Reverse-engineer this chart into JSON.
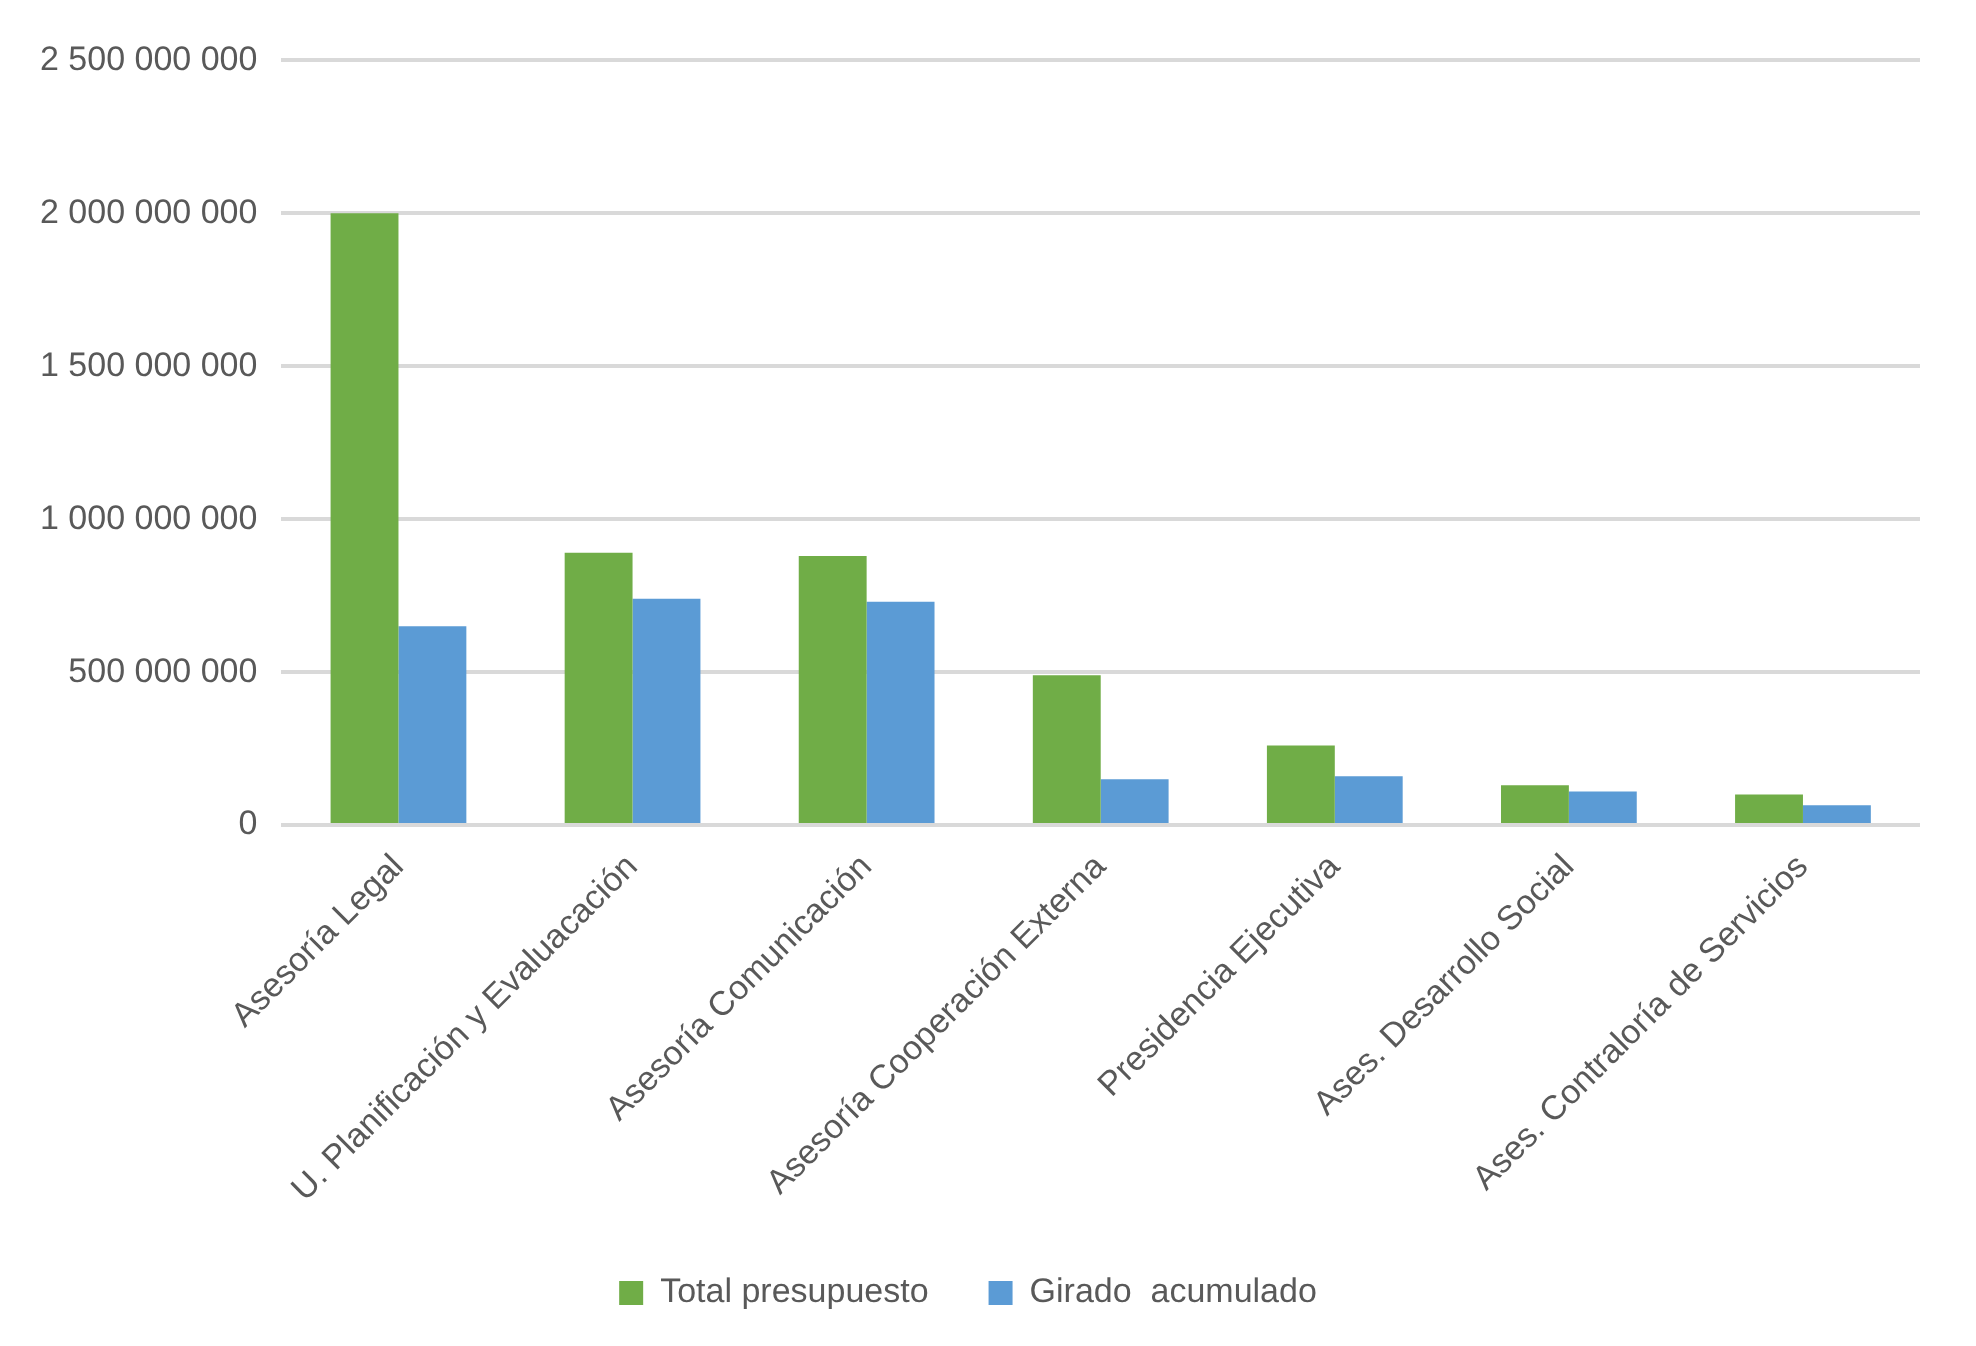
{
  "chart_data": {
    "type": "bar",
    "categories": [
      "Asesoría Legal",
      "U. Planificación y Evaluacación",
      "Asesoría Comunicación",
      "Asesoría Cooperación Externa",
      "Presidencia Ejecutiva",
      "Ases. Desarrollo Social",
      "Ases. Contraloría de Servicios"
    ],
    "series": [
      {
        "name": "Total presupuesto",
        "color": "#70ad47",
        "values": [
          2000000000,
          890000000,
          880000000,
          490000000,
          260000000,
          130000000,
          100000000
        ]
      },
      {
        "name": "Girado  acumulado",
        "color": "#5b9bd5",
        "values": [
          650000000,
          740000000,
          730000000,
          150000000,
          160000000,
          110000000,
          65000000
        ]
      }
    ],
    "ylim": [
      0,
      2500000000
    ],
    "yticks": [
      {
        "value": 0,
        "label": "0"
      },
      {
        "value": 500000000,
        "label": "500 000 000"
      },
      {
        "value": 1000000000,
        "label": "1 000 000 000"
      },
      {
        "value": 1500000000,
        "label": "1 500 000 000"
      },
      {
        "value": 2000000000,
        "label": "2 000 000 000"
      },
      {
        "value": 2500000000,
        "label": "2 500 000 000"
      }
    ],
    "grid": "y",
    "legend": "bottom"
  }
}
